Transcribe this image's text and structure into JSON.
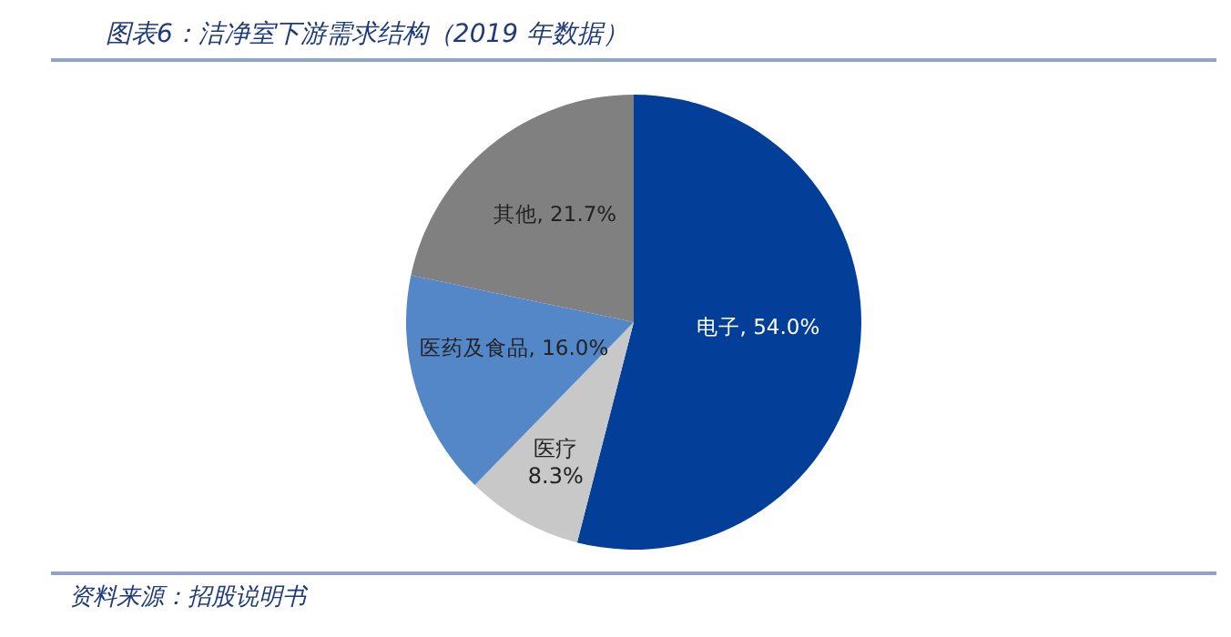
{
  "chart_data": {
    "type": "pie",
    "title": "图表6：洁净室下游需求结构（2019 年数据）",
    "categories": [
      "电子",
      "医疗",
      "医药及食品",
      "其他"
    ],
    "values": [
      54.0,
      8.3,
      16.0,
      21.7
    ],
    "value_labels": [
      "54.0%",
      "8.3%",
      "16.0%",
      "21.7%"
    ],
    "colors": [
      "#033f99",
      "#c8c8c8",
      "#5387c8",
      "#808080"
    ],
    "annotations": [
      "资料来源：招股说明书"
    ],
    "legend": false
  }
}
